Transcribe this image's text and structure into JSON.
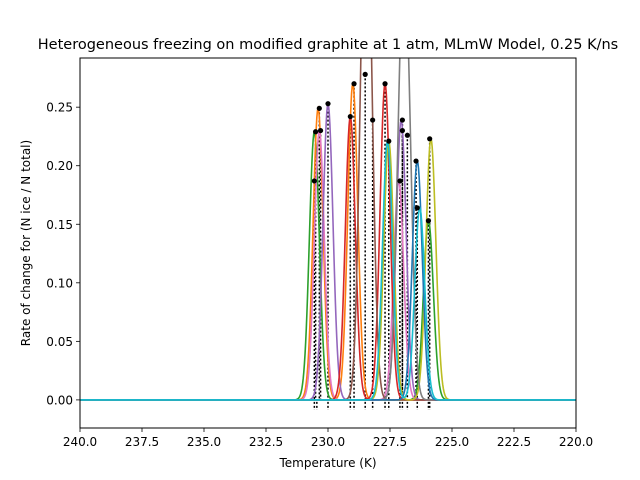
{
  "chart_data": {
    "type": "line",
    "title": "Heterogeneous freezing on modified graphite at 1 atm, MLmW Model, 0.25 K/ns",
    "xlabel": "Temperature (K)",
    "ylabel": "Rate of change for (N ice / N total)",
    "xlim": [
      240.0,
      220.0
    ],
    "ylim": [
      -0.024,
      0.292
    ],
    "x_reversed": true,
    "grid": false,
    "xticks": [
      "240.0",
      "237.5",
      "235.0",
      "232.5",
      "230.0",
      "227.5",
      "225.0",
      "222.5",
      "220.0"
    ],
    "yticks": [
      "0.00",
      "0.05",
      "0.10",
      "0.15",
      "0.20",
      "0.25"
    ],
    "xtick_values": [
      240.0,
      237.5,
      235.0,
      232.5,
      230.0,
      227.5,
      225.0,
      222.5,
      220.0
    ],
    "ytick_values": [
      0.0,
      0.05,
      0.1,
      0.15,
      0.2,
      0.25
    ],
    "peak_sigma_K": 0.2,
    "series": [
      {
        "color": "#2ca02c",
        "peaks": [
          {
            "x": 230.55,
            "y": 0.229
          },
          {
            "x": 225.95,
            "y": 0.153
          }
        ]
      },
      {
        "color": "#ff7f0e",
        "peaks": [
          {
            "x": 230.4,
            "y": 0.249
          },
          {
            "x": 229.0,
            "y": 0.27
          }
        ]
      },
      {
        "color": "#e377c2",
        "peaks": [
          {
            "x": 230.35,
            "y": 0.23
          },
          {
            "x": 227.15,
            "y": 0.187
          }
        ]
      },
      {
        "color": "#9467bd",
        "peaks": [
          {
            "x": 230.0,
            "y": 0.253
          },
          {
            "x": 227.05,
            "y": 0.239
          }
        ]
      },
      {
        "color": "#d62728",
        "peaks": [
          {
            "x": 229.1,
            "y": 0.242
          },
          {
            "x": 227.7,
            "y": 0.27
          }
        ]
      },
      {
        "color": "#8c564b",
        "peaks": [
          {
            "x": 228.55,
            "y": 0.278
          },
          {
            "x": 228.35,
            "y": 0.239
          }
        ]
      },
      {
        "color": "#bcbd22",
        "peaks": [
          {
            "x": 227.55,
            "y": 0.221
          },
          {
            "x": 225.85,
            "y": 0.223
          }
        ]
      },
      {
        "color": "#7f7f7f",
        "peaks": [
          {
            "x": 227.05,
            "y": 0.23
          },
          {
            "x": 226.8,
            "y": 0.226
          }
        ]
      },
      {
        "color": "#1f77b4",
        "peaks": [
          {
            "x": 226.4,
            "y": 0.204
          }
        ]
      },
      {
        "color": "#17becf",
        "peaks": [
          {
            "x": 227.6,
            "y": 0.221
          },
          {
            "x": 226.3,
            "y": 0.164
          }
        ]
      }
    ],
    "markers": [
      {
        "x": 230.55,
        "y": 0.187
      },
      {
        "x": 230.5,
        "y": 0.229
      },
      {
        "x": 230.3,
        "y": 0.23
      },
      {
        "x": 230.35,
        "y": 0.249
      },
      {
        "x": 230.0,
        "y": 0.253
      },
      {
        "x": 229.1,
        "y": 0.242
      },
      {
        "x": 228.95,
        "y": 0.27
      },
      {
        "x": 228.5,
        "y": 0.278
      },
      {
        "x": 228.2,
        "y": 0.239
      },
      {
        "x": 227.7,
        "y": 0.27
      },
      {
        "x": 227.55,
        "y": 0.221
      },
      {
        "x": 227.1,
        "y": 0.187
      },
      {
        "x": 227.0,
        "y": 0.239
      },
      {
        "x": 227.0,
        "y": 0.23
      },
      {
        "x": 226.8,
        "y": 0.226
      },
      {
        "x": 226.45,
        "y": 0.204
      },
      {
        "x": 226.4,
        "y": 0.164
      },
      {
        "x": 225.95,
        "y": 0.153
      },
      {
        "x": 225.9,
        "y": 0.223
      }
    ],
    "freeze_line_x": [
      230.55,
      230.45,
      230.0,
      229.1,
      228.95,
      228.5,
      228.2,
      227.7,
      227.55,
      227.1,
      227.0,
      226.8,
      226.4,
      225.95,
      225.9
    ]
  }
}
